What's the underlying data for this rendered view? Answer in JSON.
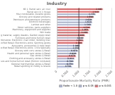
{
  "chart_data": {
    "type": "bar",
    "orientation": "horizontal",
    "title": "Industry",
    "xlabel": "Proportionate Mortality Ratio (PMR)",
    "categories": [
      "66 1, Parcel serv, air cour",
      "Parcel serv in 1 house",
      "Misc nondurable, durable goods",
      "Grocery and related products",
      "Petroleum and petroleum products",
      "Alcoholic beverages",
      "Lumber and other",
      "Motor vehicles, parts suppliers",
      "Machinery, equipment and supplies",
      "Whl trade",
      "Building material, supply dealers, Garden equip retail",
      "Furniture and home furnish retail",
      "Nonstore; Electronic; mail order; Vending misc",
      "Nonspecified Retail; Electronics store; Sporting goods",
      "Auto parts, accessories & tires retail",
      "Nonspecified Retail; Electronics store; 1 tire Specialty",
      "Grocery with conv stores & Retail",
      "Health and personal care stores & Retail",
      "Gas stores & Retail",
      "Clothing and accessory stores & Retail",
      "Furniture and home furnish retail (Portion nonlisted)",
      "General merchandise stores & Retail",
      "Retail sporting on hobby & leisure"
    ],
    "values": [
      2.09,
      1.94,
      1.77,
      1.69,
      1.62,
      1.61,
      1.58,
      1.53,
      1.46,
      1.44,
      1.28,
      1.24,
      1.22,
      1.18,
      1.06,
      1.05,
      0.97,
      0.92,
      0.87,
      0.81,
      0.78,
      0.77,
      0.7
    ],
    "value_labels": [
      "2.090",
      "1.940",
      "1.770",
      "1.690",
      "1.620",
      "1.610",
      "1.580",
      "1.530",
      "1.460",
      "1.440",
      "1.280",
      "1.240",
      "1.220",
      "1.180",
      "1.060",
      "1.050",
      "0.970",
      "0.920",
      "0.870",
      "0.810",
      "0.780",
      "0.770",
      "0.700"
    ],
    "data_labels": true,
    "colors": [
      "#e8696b",
      "#e8696b",
      "#aab4d4",
      "#e8696b",
      "#aab4d4",
      "#aab4d4",
      "#aab4d4",
      "#e8696b",
      "#e8696b",
      "#e8696b",
      "#e8696b",
      "#aab4d4",
      "#e8696b",
      "#e8696b",
      "#aab4d4",
      "#aab4d4",
      "#aab4d4",
      "#aab4d4",
      "#e8696b",
      "#aab4d4",
      "#aab4d4",
      "#aab4d4",
      "#aab4d4"
    ],
    "reference_line": 1.0,
    "xlim": [
      0.0,
      2.5
    ],
    "xticks": [
      0,
      {
        "value": 0.5,
        "label": "0.500"
      },
      {
        "value": 1.0,
        "label": "1.000"
      },
      {
        "value": 1.5,
        "label": "1.500"
      },
      {
        "value": 2.0,
        "label": "2.000"
      },
      {
        "value": 2.5,
        "label": "2.500"
      }
    ],
    "grid": true,
    "legend": "lower right",
    "legend_items": [
      {
        "label": "Ratio < 1.0",
        "color": "#aab4d4"
      },
      {
        "label": "p ≤ 0.05",
        "color": "#aab4d4"
      },
      {
        "label": "p ≤ 0.001",
        "color": "#e8696b"
      }
    ]
  }
}
